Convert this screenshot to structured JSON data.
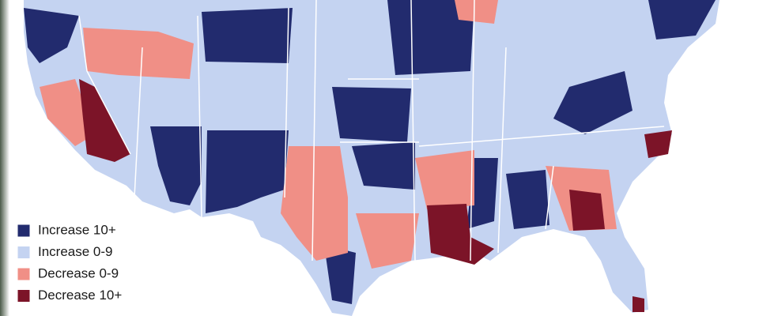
{
  "legend": {
    "items": [
      {
        "label": "Increase 10+",
        "color": "#222b6e"
      },
      {
        "label": "Increase 0-9",
        "color": "#c4d3f1"
      },
      {
        "label": "Decrease 0-9",
        "color": "#f08f86"
      },
      {
        "label": "Decrease 10+",
        "color": "#7c1428"
      }
    ]
  }
}
